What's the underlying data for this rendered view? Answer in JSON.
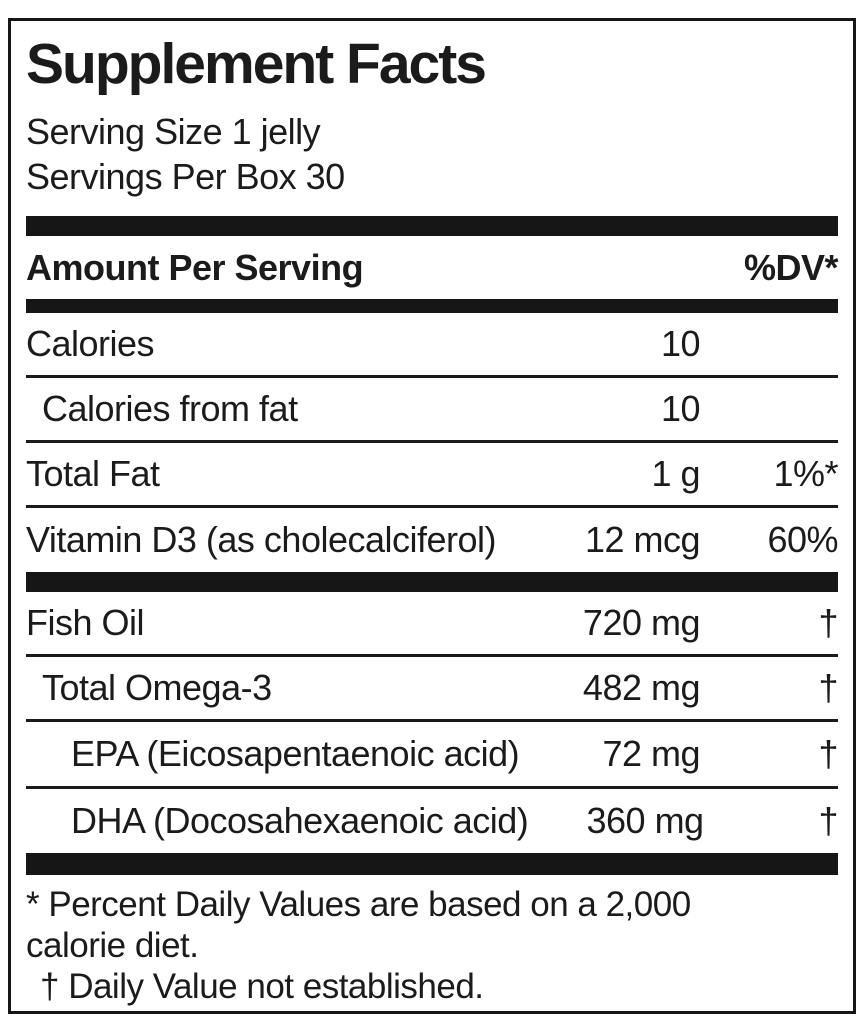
{
  "label": {
    "title": "Supplement Facts",
    "serving_size": "Serving Size 1 jelly",
    "servings_per_box": "Servings Per Box 30",
    "columns": {
      "amount_header": "Amount Per Serving",
      "dv_header": "%DV*"
    },
    "rows": [
      {
        "name": "Calories",
        "amount": "10",
        "dv": "",
        "indent": 0
      },
      {
        "name": "Calories from fat",
        "amount": "10",
        "dv": "",
        "indent": 1
      },
      {
        "name": "Total Fat",
        "amount": "1 g",
        "dv": "1%*",
        "indent": 0
      },
      {
        "name": "Vitamin D3 (as cholecalciferol)",
        "amount": "12 mcg",
        "dv": "60%",
        "indent": 0
      },
      {
        "name": "Fish Oil",
        "amount": "720 mg",
        "dv": "†",
        "indent": 0
      },
      {
        "name": "Total Omega-3",
        "amount": "482 mg",
        "dv": "†",
        "indent": 1
      },
      {
        "name": "EPA (Eicosapentaenoic acid)",
        "amount": "72 mg",
        "dv": "†",
        "indent": 2
      },
      {
        "name": "DHA (Docosahexaenoic acid)",
        "amount": "360 mg",
        "dv": "†",
        "indent": 2
      }
    ],
    "footnote_lines": [
      "* Percent Daily Values are based on a 2,000",
      "calorie diet.",
      "† Daily Value not established."
    ],
    "colors": {
      "text": "#1b1b1b",
      "divider": "#161616",
      "background": "#ffffff"
    }
  }
}
